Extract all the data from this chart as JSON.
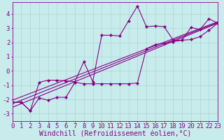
{
  "background_color": "#c8ecec",
  "grid_color": "#b0d8d8",
  "line_color": "#880088",
  "marker_color": "#880088",
  "xlabel": "Windchill (Refroidissement éolien,°C)",
  "xlim": [
    0,
    23
  ],
  "ylim": [
    -3.5,
    4.8
  ],
  "yticks": [
    -3,
    -2,
    -1,
    0,
    1,
    2,
    3,
    4
  ],
  "xticks": [
    0,
    1,
    2,
    3,
    4,
    5,
    6,
    7,
    8,
    9,
    10,
    11,
    12,
    13,
    14,
    15,
    16,
    17,
    18,
    19,
    20,
    21,
    22,
    23
  ],
  "series1_x": [
    0,
    1,
    2,
    3,
    4,
    5,
    6,
    7,
    8,
    9,
    10,
    11,
    12,
    13,
    14,
    15,
    16,
    17,
    18,
    19,
    20,
    21,
    22,
    23
  ],
  "series1_y": [
    -2.2,
    -2.2,
    -2.8,
    -0.8,
    -0.65,
    -0.65,
    -0.7,
    -0.75,
    0.65,
    -0.75,
    2.5,
    2.5,
    2.45,
    3.5,
    4.55,
    3.1,
    3.15,
    3.1,
    2.15,
    2.15,
    3.05,
    2.9,
    3.65,
    3.35
  ],
  "series2_x": [
    0,
    1,
    2,
    3,
    4,
    5,
    6,
    7,
    8,
    9,
    10,
    11,
    12,
    13,
    14,
    15,
    16,
    17,
    18,
    19,
    20,
    21,
    22,
    23
  ],
  "series2_y": [
    -2.2,
    -2.2,
    -2.8,
    -1.9,
    -2.05,
    -1.85,
    -1.85,
    -0.8,
    -0.9,
    -0.9,
    -0.9,
    -0.9,
    -0.9,
    -0.9,
    -0.85,
    1.55,
    1.85,
    1.95,
    2.05,
    2.15,
    2.2,
    2.4,
    2.85,
    3.35
  ],
  "series3_x": [
    0,
    23
  ],
  "series3_y": [
    -2.55,
    3.35
  ],
  "series4_x": [
    0,
    23
  ],
  "series4_y": [
    -2.3,
    3.4
  ],
  "series5_x": [
    0,
    23
  ],
  "series5_y": [
    -2.05,
    3.45
  ],
  "xlabel_fontsize": 7,
  "tick_fontsize": 6.5
}
